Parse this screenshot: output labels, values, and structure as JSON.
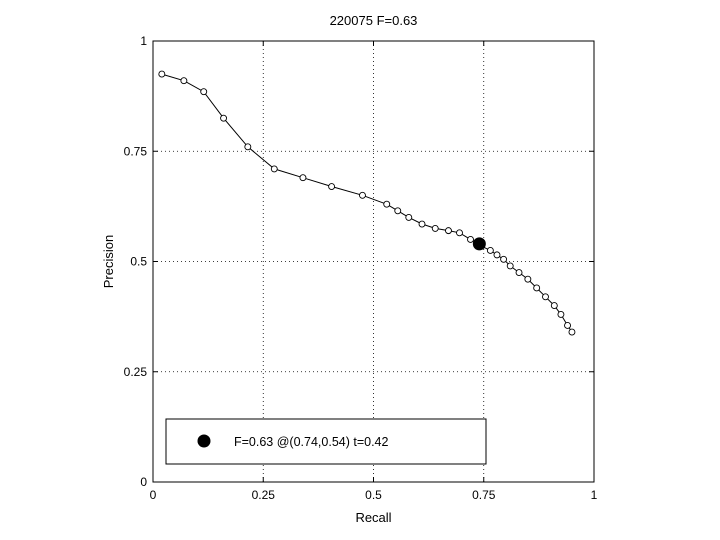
{
  "chart_data": {
    "type": "line",
    "title": "220075 F=0.63",
    "xlabel": "Recall",
    "ylabel": "Precision",
    "xlim": [
      0,
      1
    ],
    "ylim": [
      0,
      1
    ],
    "xticks": [
      0,
      0.25,
      0.5,
      0.75,
      1
    ],
    "xtick_labels": [
      "0",
      "0.25",
      "0.5",
      "0.75",
      "1"
    ],
    "yticks": [
      0,
      0.25,
      0.5,
      0.75,
      1
    ],
    "ytick_labels": [
      "0",
      "0.25",
      "0.5",
      "0.75",
      "1"
    ],
    "grid": true,
    "series": [
      {
        "marker": "open-circle",
        "color": "#000000",
        "x": [
          0.02,
          0.07,
          0.115,
          0.16,
          0.215,
          0.275,
          0.34,
          0.405,
          0.475,
          0.53,
          0.555,
          0.58,
          0.61,
          0.64,
          0.67,
          0.695,
          0.72,
          0.745,
          0.765,
          0.78,
          0.795,
          0.81,
          0.83,
          0.85,
          0.87,
          0.89,
          0.91,
          0.925,
          0.94,
          0.95
        ],
        "y": [
          0.925,
          0.91,
          0.885,
          0.825,
          0.76,
          0.71,
          0.69,
          0.67,
          0.65,
          0.63,
          0.615,
          0.6,
          0.585,
          0.575,
          0.57,
          0.565,
          0.55,
          0.535,
          0.525,
          0.515,
          0.505,
          0.49,
          0.475,
          0.46,
          0.44,
          0.42,
          0.4,
          0.38,
          0.355,
          0.34
        ]
      }
    ],
    "best_point": {
      "recall": 0.74,
      "precision": 0.54
    },
    "legend": {
      "position": "bottom-left",
      "entries": [
        {
          "label": "F=0.63 @(0.74,0.54) t=0.42",
          "marker": "filled-circle"
        }
      ]
    }
  }
}
